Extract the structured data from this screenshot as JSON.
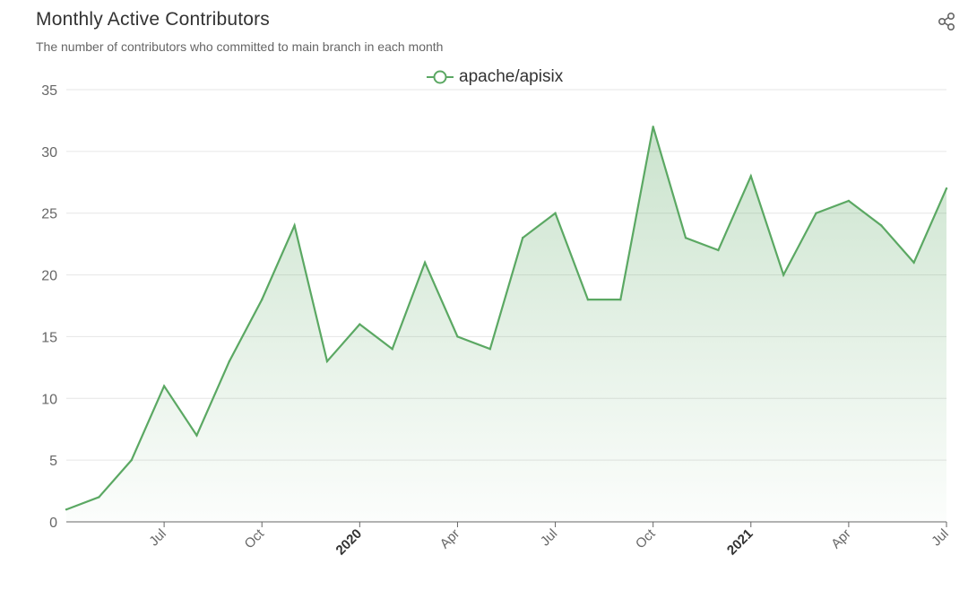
{
  "header": {
    "title": "Monthly Active Contributors",
    "subtitle": "The number of contributors who committed to main branch in each month"
  },
  "toolbar": {
    "share_icon": "share-icon"
  },
  "colors": {
    "line": "#5BA863",
    "grid": "#e6e6e6",
    "axis": "#666666",
    "text": "#333333"
  },
  "chart_data": {
    "type": "area",
    "title": "Monthly Active Contributors",
    "subtitle": "The number of contributors who committed to main branch in each month",
    "x": [
      "2019-04",
      "2019-05",
      "2019-06",
      "2019-07",
      "2019-08",
      "2019-09",
      "2019-10",
      "2019-11",
      "2019-12",
      "2020-01",
      "2020-02",
      "2020-03",
      "2020-04",
      "2020-05",
      "2020-06",
      "2020-07",
      "2020-08",
      "2020-09",
      "2020-10",
      "2020-11",
      "2020-12",
      "2021-01",
      "2021-02",
      "2021-03",
      "2021-04",
      "2021-05",
      "2021-06",
      "2021-07"
    ],
    "series": [
      {
        "name": "apache/apisix",
        "values": [
          1,
          2,
          5,
          11,
          7,
          13,
          18,
          24,
          13,
          16,
          14,
          21,
          15,
          14,
          23,
          25,
          18,
          18,
          32,
          23,
          22,
          28,
          20,
          25,
          26,
          24,
          21,
          27
        ]
      }
    ],
    "x_ticks": [
      {
        "x": "2019-07",
        "label": "Jul"
      },
      {
        "x": "2019-10",
        "label": "Oct"
      },
      {
        "x": "2020-01",
        "label": "2020"
      },
      {
        "x": "2020-04",
        "label": "Apr"
      },
      {
        "x": "2020-07",
        "label": "Jul"
      },
      {
        "x": "2020-10",
        "label": "Oct"
      },
      {
        "x": "2021-01",
        "label": "2021"
      },
      {
        "x": "2021-04",
        "label": "Apr"
      },
      {
        "x": "2021-07",
        "label": "Jul"
      }
    ],
    "ylim": [
      0,
      35
    ],
    "y_ticks": [
      0,
      5,
      10,
      15,
      20,
      25,
      30,
      35
    ],
    "xlabel": "",
    "ylabel": "",
    "grid": true,
    "legend": "top-center"
  }
}
